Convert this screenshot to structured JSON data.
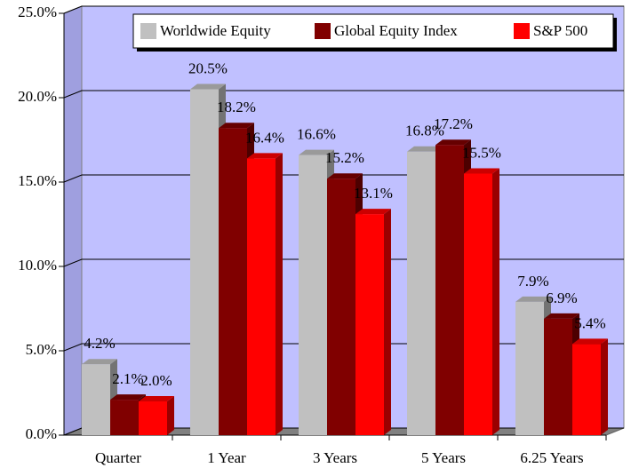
{
  "chart_data": {
    "type": "bar3d",
    "categories": [
      "Quarter",
      "1 Year",
      "3 Years",
      "5 Years",
      "6.25 Years"
    ],
    "series": [
      {
        "name": "Worldwide Equity",
        "color": "#c0c0c0",
        "values": [
          4.2,
          20.5,
          16.6,
          16.8,
          7.9
        ],
        "value_labels": [
          "4.2%",
          "20.5%",
          "16.6%",
          "16.8%",
          "7.9%"
        ]
      },
      {
        "name": "Global Equity Index",
        "color": "#800000",
        "values": [
          2.1,
          18.2,
          15.2,
          17.2,
          6.9
        ],
        "value_labels": [
          "2.1%",
          "18.2%",
          "15.2%",
          "17.2%",
          "6.9%"
        ]
      },
      {
        "name": "S&P 500",
        "color": "#ff0000",
        "values": [
          2.0,
          16.4,
          13.1,
          15.5,
          5.4
        ],
        "value_labels": [
          "2.0%",
          "16.4%",
          "13.1%",
          "15.5%",
          "5.4%"
        ]
      }
    ],
    "ylim": [
      0,
      25
    ],
    "yticks": [
      {
        "value": 0,
        "label": "0.0%"
      },
      {
        "value": 5,
        "label": "5.0%"
      },
      {
        "value": 10,
        "label": "10.0%"
      },
      {
        "value": 15,
        "label": "15.0%"
      },
      {
        "value": 20,
        "label": "20.0%"
      },
      {
        "value": 25,
        "label": "25.0%"
      }
    ],
    "grid": true,
    "legend": "top"
  }
}
